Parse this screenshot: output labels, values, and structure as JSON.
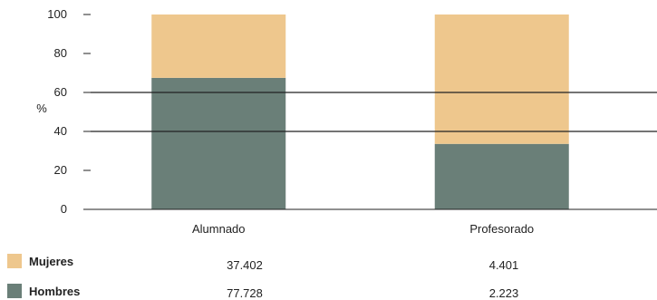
{
  "chart_data": {
    "type": "bar",
    "stacked": true,
    "ylabel": "%",
    "ylim": [
      0,
      100
    ],
    "yticks": [
      0,
      20,
      40,
      60,
      80,
      100
    ],
    "reference_lines": [
      60,
      40
    ],
    "categories": [
      "Alumnado",
      "Profesorado"
    ],
    "series": [
      {
        "name": "Hombres",
        "color": "#6a7f78",
        "values": [
          67.5,
          33.6
        ],
        "counts": [
          "77.728",
          "2.223"
        ]
      },
      {
        "name": "Mujeres",
        "color": "#eec78d",
        "values": [
          32.5,
          66.4
        ],
        "counts": [
          "37.402",
          "4.401"
        ]
      }
    ]
  }
}
